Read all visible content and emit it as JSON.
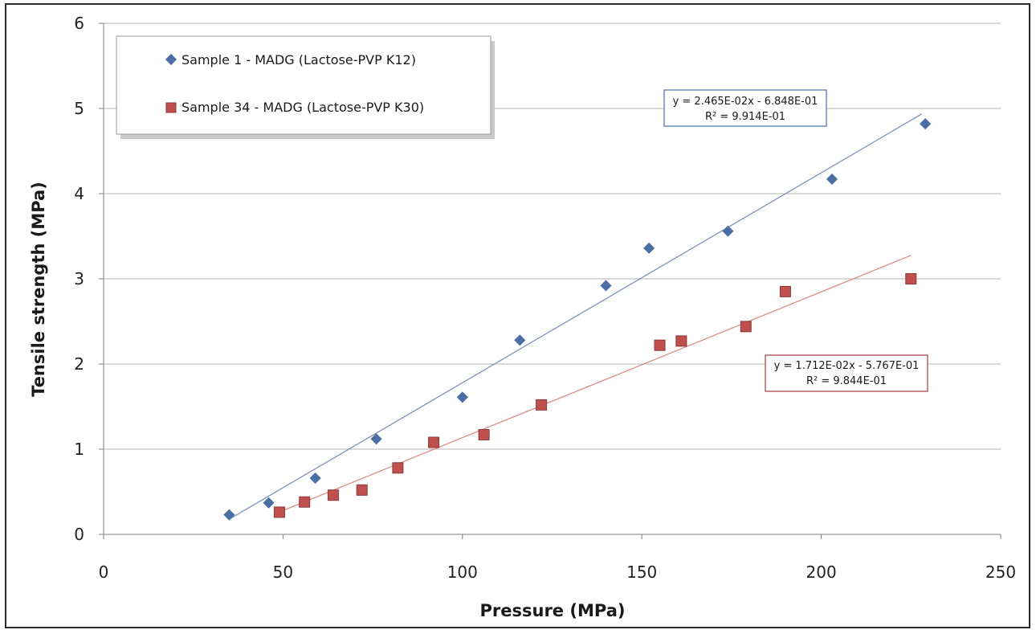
{
  "chart_data": {
    "type": "scatter",
    "title": "",
    "xlabel": "Pressure (MPa)",
    "ylabel": "Tensile strength (MPa)",
    "xlim": [
      0,
      250
    ],
    "ylim": [
      0,
      6
    ],
    "x_ticks": [
      "0",
      "50",
      "100",
      "150",
      "200",
      "250"
    ],
    "y_ticks": [
      "0",
      "1",
      "2",
      "3",
      "4",
      "5",
      "6"
    ],
    "grid": "horizontal",
    "legend_position": "top-left",
    "series": [
      {
        "name": "Sample 1  - MADG (Lactose-PVP K12)",
        "marker": "diamond",
        "color": "#4a6fa5",
        "trendline_color": "#7f93b8",
        "x": [
          35,
          46,
          59,
          76,
          100,
          116,
          140,
          152,
          174,
          203,
          229
        ],
        "y": [
          0.23,
          0.37,
          0.66,
          1.12,
          1.61,
          2.28,
          2.92,
          3.36,
          3.56,
          4.17,
          4.82
        ],
        "trendline": {
          "slope": 0.02465,
          "intercept": -0.6848,
          "x_range": [
            35,
            228
          ],
          "equation": "y = 2.465E-02x - 6.848E-01",
          "r2": "R² = 9.914E-01"
        }
      },
      {
        "name": "Sample 34  - MADG (Lactose-PVP K30)",
        "marker": "square",
        "color": "#c0504d",
        "trendline_color": "#d98b88",
        "x": [
          49,
          56,
          64,
          72,
          82,
          92,
          106,
          122,
          155,
          161,
          179,
          190,
          225
        ],
        "y": [
          0.26,
          0.38,
          0.46,
          0.52,
          0.78,
          1.08,
          1.17,
          1.52,
          2.22,
          2.27,
          2.44,
          2.85,
          3.0
        ],
        "trendline": {
          "slope": 0.01712,
          "intercept": -0.5767,
          "x_range": [
            48,
            225
          ],
          "equation": "y = 1.712E-02x - 5.767E-01",
          "r2": "R² = 9.844E-01"
        }
      }
    ]
  }
}
